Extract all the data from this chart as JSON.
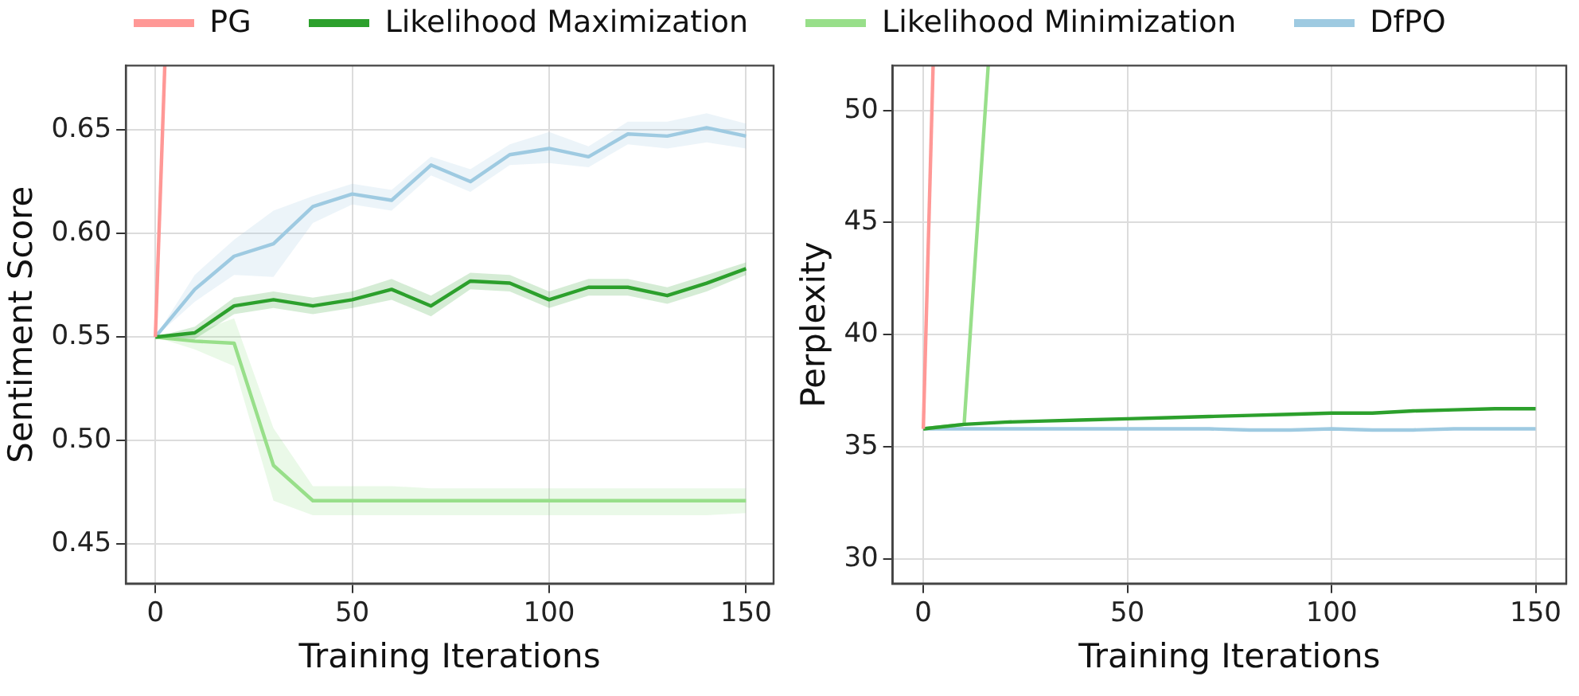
{
  "chart_data": [
    {
      "type": "line",
      "xlabel": "Training Iterations",
      "ylabel": "Sentiment Score",
      "xlim": [
        -7.5,
        157
      ],
      "ylim": [
        0.431,
        0.681
      ],
      "xticks": [
        0,
        50,
        100,
        150
      ],
      "yticks": [
        {
          "value": 0.45,
          "label": "0.45"
        },
        {
          "value": 0.5,
          "label": "0.50"
        },
        {
          "value": 0.55,
          "label": "0.55"
        },
        {
          "value": 0.6,
          "label": "0.60"
        },
        {
          "value": 0.65,
          "label": "0.65"
        }
      ],
      "grid": true,
      "legend": "top",
      "series": [
        {
          "name": "PG",
          "color": "#ff9896",
          "x": [
            0,
            2.4
          ],
          "values": [
            0.55,
            0.681
          ]
        },
        {
          "name": "Likelihood Maximization",
          "color": "#2ca02c",
          "x": [
            0,
            10,
            20,
            30,
            40,
            50,
            60,
            70,
            80,
            90,
            100,
            110,
            120,
            130,
            140,
            150
          ],
          "values": [
            0.55,
            0.552,
            0.565,
            0.568,
            0.565,
            0.568,
            0.573,
            0.565,
            0.577,
            0.576,
            0.568,
            0.574,
            0.574,
            0.57,
            0.576,
            0.583
          ],
          "lower": [
            0.55,
            0.549,
            0.561,
            0.564,
            0.561,
            0.564,
            0.568,
            0.56,
            0.573,
            0.572,
            0.564,
            0.57,
            0.57,
            0.566,
            0.572,
            0.58
          ],
          "upper": [
            0.55,
            0.555,
            0.569,
            0.572,
            0.569,
            0.572,
            0.578,
            0.57,
            0.581,
            0.58,
            0.572,
            0.578,
            0.578,
            0.574,
            0.58,
            0.586
          ]
        },
        {
          "name": "Likelihood Minimization",
          "color": "#98df8a",
          "x": [
            0,
            10,
            20,
            30,
            40,
            50,
            60,
            70,
            80,
            90,
            100,
            110,
            120,
            130,
            140,
            150
          ],
          "values": [
            0.55,
            0.548,
            0.547,
            0.488,
            0.471,
            0.471,
            0.471,
            0.471,
            0.471,
            0.471,
            0.471,
            0.471,
            0.471,
            0.471,
            0.471,
            0.471
          ],
          "lower": [
            0.55,
            0.544,
            0.536,
            0.471,
            0.464,
            0.464,
            0.464,
            0.464,
            0.464,
            0.464,
            0.464,
            0.464,
            0.464,
            0.464,
            0.464,
            0.465
          ],
          "upper": [
            0.55,
            0.552,
            0.559,
            0.506,
            0.478,
            0.478,
            0.478,
            0.477,
            0.477,
            0.477,
            0.477,
            0.477,
            0.477,
            0.477,
            0.477,
            0.477
          ]
        },
        {
          "name": "DfPO",
          "color": "#9ecae1",
          "x": [
            0,
            10,
            20,
            30,
            40,
            50,
            60,
            70,
            80,
            90,
            100,
            110,
            120,
            130,
            140,
            150
          ],
          "values": [
            0.55,
            0.573,
            0.589,
            0.595,
            0.613,
            0.619,
            0.616,
            0.633,
            0.625,
            0.638,
            0.641,
            0.637,
            0.648,
            0.647,
            0.651,
            0.647
          ],
          "lower": [
            0.55,
            0.567,
            0.58,
            0.579,
            0.605,
            0.614,
            0.611,
            0.628,
            0.62,
            0.633,
            0.634,
            0.632,
            0.643,
            0.641,
            0.644,
            0.641
          ],
          "upper": [
            0.55,
            0.58,
            0.597,
            0.611,
            0.618,
            0.624,
            0.621,
            0.637,
            0.631,
            0.643,
            0.649,
            0.642,
            0.654,
            0.654,
            0.658,
            0.653
          ]
        }
      ]
    },
    {
      "type": "line",
      "xlabel": "Training Iterations",
      "ylabel": "Perplexity",
      "xlim": [
        -7.5,
        157.5
      ],
      "ylim": [
        28.9,
        52
      ],
      "xticks": [
        0,
        50,
        100,
        150
      ],
      "yticks": [
        30,
        35,
        40,
        45,
        50
      ],
      "grid": true,
      "series": [
        {
          "color": "#ff9896",
          "x": [
            0,
            2.4
          ],
          "values": [
            35.8,
            52
          ]
        },
        {
          "color": "#2ca02c",
          "x": [
            0,
            10,
            20,
            30,
            40,
            50,
            60,
            70,
            80,
            90,
            100,
            110,
            120,
            130,
            140,
            150
          ],
          "values": [
            35.8,
            36.0,
            36.1,
            36.15,
            36.2,
            36.25,
            36.3,
            36.35,
            36.4,
            36.45,
            36.5,
            36.5,
            36.6,
            36.65,
            36.7,
            36.7
          ]
        },
        {
          "color": "#98df8a",
          "x": [
            0,
            10,
            15.9
          ],
          "values": [
            35.8,
            36.0,
            52
          ]
        },
        {
          "color": "#9ecae1",
          "x": [
            0,
            10,
            20,
            30,
            40,
            50,
            60,
            70,
            80,
            90,
            100,
            110,
            120,
            130,
            140,
            150
          ],
          "values": [
            35.8,
            35.8,
            35.8,
            35.8,
            35.8,
            35.8,
            35.8,
            35.8,
            35.75,
            35.75,
            35.8,
            35.75,
            35.75,
            35.8,
            35.8,
            35.8
          ]
        }
      ]
    }
  ]
}
